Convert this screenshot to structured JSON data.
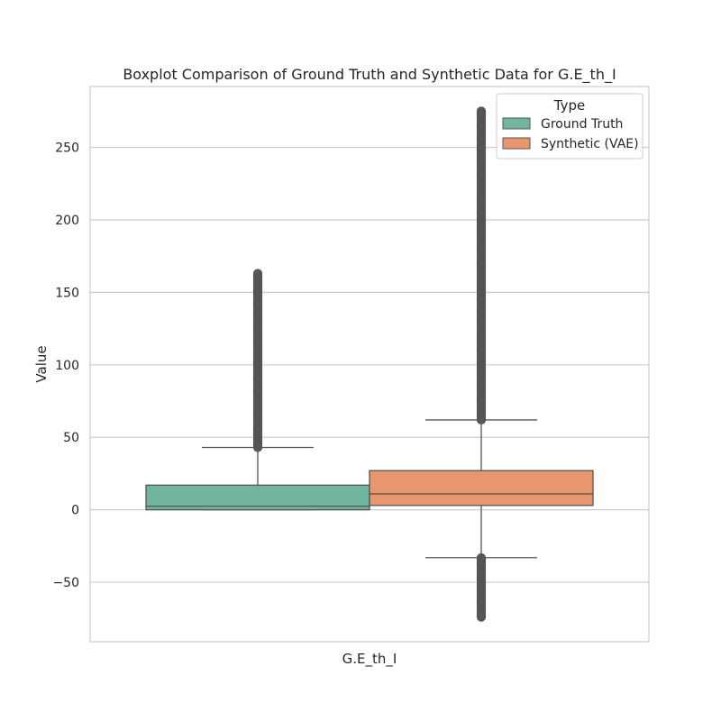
{
  "chart_data": {
    "type": "boxplot",
    "title": "Boxplot Comparison of Ground Truth and Synthetic Data for G.E_th_I",
    "xlabel": "G.E_th_I",
    "ylabel": "Value",
    "ylim": [
      -91,
      292
    ],
    "yticks": [
      -50,
      0,
      50,
      100,
      150,
      200,
      250
    ],
    "ytick_labels": [
      "−50",
      "0",
      "50",
      "100",
      "150",
      "200",
      "250"
    ],
    "grid": true,
    "legend": {
      "title": "Type",
      "placement": "top-right",
      "entries": [
        "Ground Truth",
        "Synthetic (VAE)"
      ]
    },
    "series": [
      {
        "name": "Ground Truth",
        "color": "#72b59e",
        "q1": 0,
        "median": 2.5,
        "q3": 17,
        "whisker_low": 0,
        "whisker_high": 43,
        "outliers_low": [],
        "outliers_high_range": [
          43,
          163
        ]
      },
      {
        "name": "Synthetic (VAE)",
        "color": "#e9956e",
        "q1": 3,
        "median": 11,
        "q3": 27,
        "whisker_low": -33,
        "whisker_high": 62,
        "outliers_low_range": [
          -74,
          -33
        ],
        "outliers_high_range": [
          62,
          275
        ]
      }
    ]
  }
}
